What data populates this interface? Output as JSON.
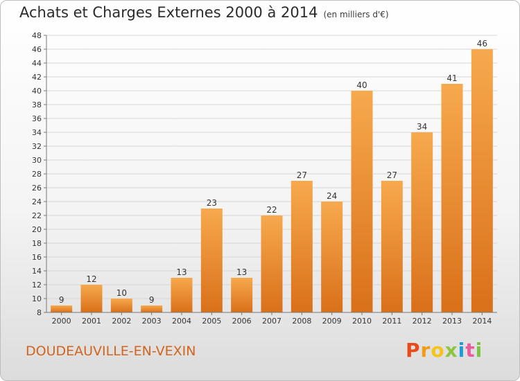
{
  "header": {
    "title": "Achats et Charges Externes 2000 à 2014",
    "unit": "(en milliers d'€)"
  },
  "footer": {
    "commune": "DOUDEAUVILLE-EN-VEXIN",
    "logo_letters": [
      "P",
      "r",
      "o",
      "x",
      "i",
      "t",
      "i"
    ],
    "logo_colors": [
      "#e84b1a",
      "#f29b16",
      "#f7c21a",
      "#8dc63f",
      "#1e9ad6",
      "#ea5c9d",
      "#7cc243"
    ]
  },
  "chart_data": {
    "type": "bar",
    "categories": [
      "2000",
      "2001",
      "2002",
      "2003",
      "2004",
      "2005",
      "2006",
      "2007",
      "2008",
      "2009",
      "2010",
      "2011",
      "2012",
      "2013",
      "2014"
    ],
    "values": [
      9,
      12,
      10,
      9,
      13,
      23,
      13,
      22,
      27,
      24,
      40,
      27,
      34,
      41,
      46
    ],
    "ylim": [
      8,
      48
    ],
    "yticks": [
      8,
      10,
      12,
      14,
      16,
      18,
      20,
      22,
      24,
      26,
      28,
      30,
      32,
      34,
      36,
      38,
      40,
      42,
      44,
      46,
      48
    ],
    "grid": true,
    "bar_color": "#f0922f"
  }
}
